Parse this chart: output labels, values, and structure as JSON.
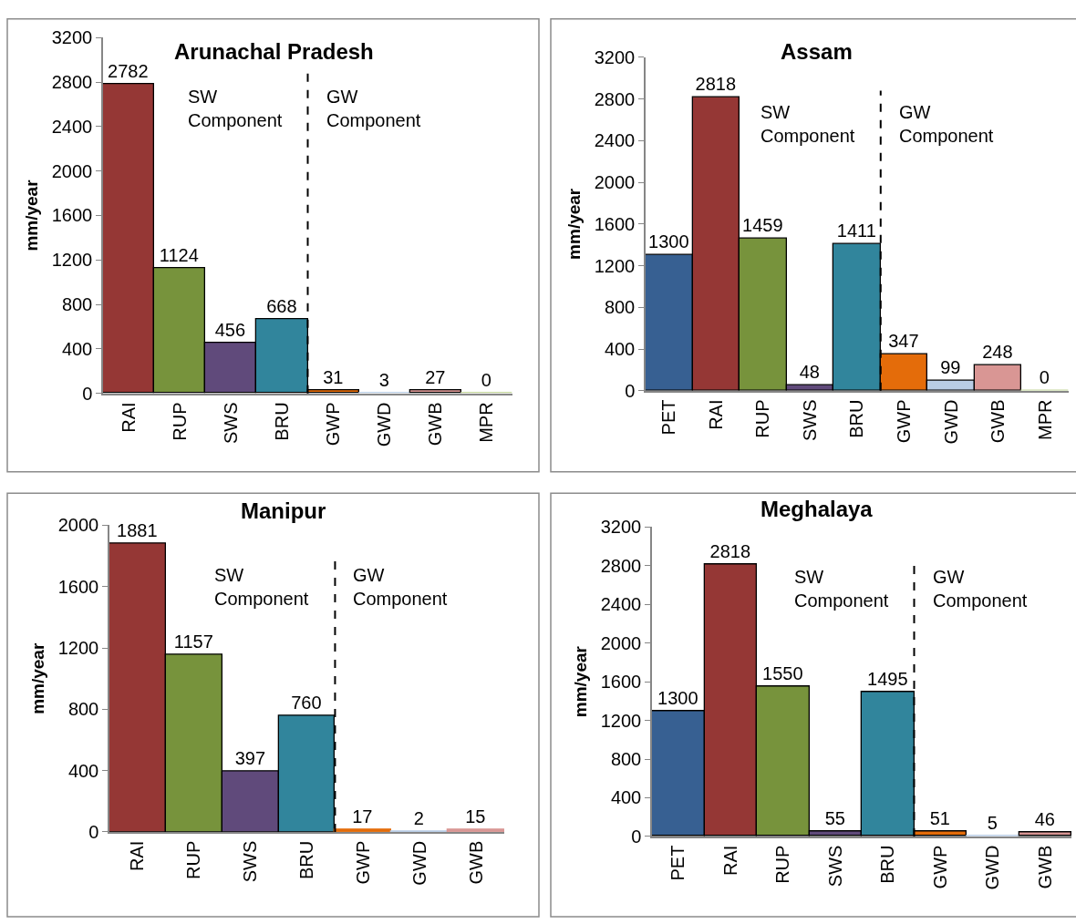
{
  "chart_data": [
    {
      "type": "bar",
      "title": "Arunachal Pradesh",
      "ylabel": "mm/year",
      "categories": [
        "RAI",
        "RUP",
        "SWS",
        "BRU",
        "GWP",
        "GWD",
        "GWB",
        "MPR"
      ],
      "values": [
        2782,
        1124,
        456,
        668,
        31,
        3,
        27,
        0
      ],
      "colors": [
        "#953735",
        "#77933c",
        "#604a7b",
        "#31859c",
        "#e46c0a",
        "#b9cde5",
        "#d99694",
        "#c3d69b"
      ],
      "ylim": [
        0,
        3200
      ],
      "yticks": [
        0,
        400,
        800,
        1200,
        1600,
        2000,
        2400,
        2800,
        3200
      ],
      "data_labels": true,
      "annotations": [
        "SW\nComponent",
        "GW\nComponent"
      ]
    },
    {
      "type": "bar",
      "title": "Assam",
      "ylabel": "mm/year",
      "categories": [
        "PET",
        "RAI",
        "RUP",
        "SWS",
        "BRU",
        "GWP",
        "GWD",
        "GWB",
        "MPR"
      ],
      "values": [
        1300,
        2818,
        1459,
        48,
        1411,
        347,
        99,
        248,
        0
      ],
      "colors": [
        "#376092",
        "#953735",
        "#77933c",
        "#604a7b",
        "#31859c",
        "#e46c0a",
        "#b9cde5",
        "#d99694",
        "#c3d69b"
      ],
      "ylim": [
        0,
        3200
      ],
      "yticks": [
        0,
        400,
        800,
        1200,
        1600,
        2000,
        2400,
        2800,
        3200
      ],
      "data_labels": true,
      "annotations": [
        "SW\nComponent",
        "GW\nComponent"
      ]
    },
    {
      "type": "bar",
      "title": "Manipur",
      "ylabel": "mm/year",
      "categories": [
        "RAI",
        "RUP",
        "SWS",
        "BRU",
        "GWP",
        "GWD",
        "GWB"
      ],
      "values": [
        1881,
        1157,
        397,
        760,
        17,
        2,
        15
      ],
      "colors": [
        "#953735",
        "#77933c",
        "#604a7b",
        "#31859c",
        "#e46c0a",
        "#b9cde5",
        "#d99694"
      ],
      "ylim": [
        0,
        2000
      ],
      "yticks": [
        0,
        400,
        800,
        1200,
        1600,
        2000
      ],
      "data_labels": true,
      "annotations": [
        "SW\nComponent",
        "GW\nComponent"
      ]
    },
    {
      "type": "bar",
      "title": "Meghalaya",
      "ylabel": "mm/year",
      "categories": [
        "PET",
        "RAI",
        "RUP",
        "SWS",
        "BRU",
        "GWP",
        "GWD",
        "GWB"
      ],
      "values": [
        1300,
        2818,
        1550,
        55,
        1495,
        51,
        5,
        46
      ],
      "colors": [
        "#376092",
        "#953735",
        "#77933c",
        "#604a7b",
        "#31859c",
        "#e46c0a",
        "#b9cde5",
        "#d99694"
      ],
      "ylim": [
        0,
        3200
      ],
      "yticks": [
        0,
        400,
        800,
        1200,
        1600,
        2000,
        2400,
        2800,
        3200
      ],
      "data_labels": true,
      "annotations": [
        "SW\nComponent",
        "GW\nComponent"
      ]
    }
  ]
}
